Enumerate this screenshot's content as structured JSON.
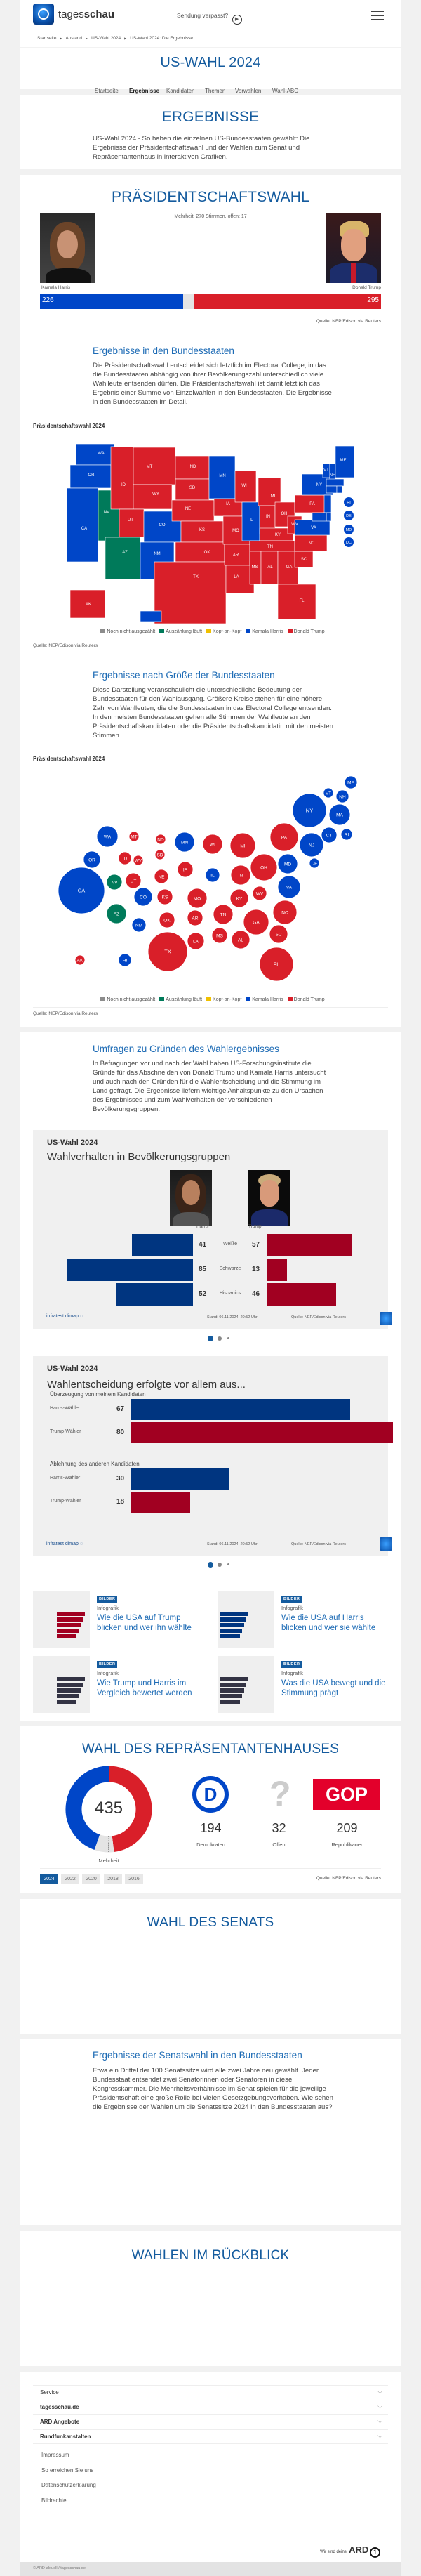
{
  "header": {
    "brand_light": "tages",
    "brand_bold": "schau",
    "sendung": "Sendung verpasst?",
    "menu_icon": "hamburger-icon"
  },
  "breadcrumb": [
    "Startseite",
    "Ausland",
    "US-Wahl 2024",
    "US-Wahl 2024: Die Ergebnisse"
  ],
  "page_title": "US-WAHL 2024",
  "nav": [
    {
      "label": "Startseite"
    },
    {
      "label": "Ergebnisse",
      "active": true
    },
    {
      "label": "Kandidaten"
    },
    {
      "label": "Themen"
    },
    {
      "label": "Vorwahlen"
    },
    {
      "label": "Wahl-ABC"
    }
  ],
  "intro": {
    "title": "ERGEBNISSE",
    "text": "US-Wahl 2024 - So haben die einzelnen US-Bundesstaaten gewählt: Die Ergebnisse der Präsidentschaftswahl und der Wahlen zum Senat und Repräsentantenhaus in interaktiven Grafiken."
  },
  "president": {
    "title": "PRÄSIDENTSCHAFTSWAHL",
    "majority": "Mehrheit: 270 Stimmen, offen: 17",
    "harris": {
      "name": "Kamala Harris",
      "votes": 226
    },
    "trump": {
      "name": "Donald Trump",
      "votes": 295
    },
    "open": 17,
    "total": 538,
    "majority_line": 270,
    "source": "Quelle: NEP/Edison via Reuters",
    "states_heading": "Ergebnisse in den Bundesstaaten",
    "states_text": "Die Präsidentschaftswahl entscheidet sich letztlich im Electoral College, in das die Bundesstaaten abhängig von ihrer Bevölkerungszahl unterschiedlich viele Wahlleute entsenden dürfen. Die Präsidentschaftswahl ist damit letztlich das Ergebnis einer Summe von Einzelwahlen in den Bundesstaaten. Die Ergebnisse in den Bundesstaaten im Detail.",
    "map_label": "Präsidentschaftswahl 2024",
    "size_heading": "Ergebnisse nach Größe der Bundesstaaten",
    "size_text": "Diese Darstellung veranschaulicht die unterschiedliche Bedeutung der Bundesstaaten für den Wahlausgang. Größere Kreise stehen für eine höhere Zahl von Wahlleuten, die die Bundesstaaten in das Electoral College entsenden. In den meisten Bundesstaaten gehen alle Stimmen der Wahlleute an den Präsidentschaftskandidaten oder die Präsidentschaftskandidatin mit den meisten Stimmen.",
    "bubble_label": "Präsidentschaftswahl 2024"
  },
  "colors": {
    "harris": "#0046c8",
    "trump": "#d91f29",
    "counting": "#007a5a",
    "notcounted": "#8c8c8c",
    "tossup": "#f0c000",
    "title": "#145b9e",
    "survey_blue": "#003580",
    "survey_red": "#a10021"
  },
  "legend": [
    {
      "label": "Noch nicht ausgezählt",
      "key": "notcounted"
    },
    {
      "label": "Auszählung läuft",
      "key": "counting"
    },
    {
      "label": "Kopf-an-Kopf",
      "key": "tossup"
    },
    {
      "label": "Kamala Harris",
      "key": "harris"
    },
    {
      "label": "Donald Trump",
      "key": "trump"
    }
  ],
  "states": {
    "harris": [
      "WA",
      "OR",
      "CA",
      "CO",
      "NM",
      "MN",
      "IL",
      "VA",
      "MD",
      "DE",
      "NJ",
      "NY",
      "CT",
      "RI",
      "MA",
      "VT",
      "NH",
      "ME",
      "HI",
      "DC"
    ],
    "counting": [
      "NV",
      "AZ"
    ],
    "trump": [
      "ID",
      "MT",
      "WY",
      "UT",
      "ND",
      "SD",
      "NE",
      "KS",
      "OK",
      "TX",
      "IA",
      "MO",
      "AR",
      "LA",
      "WI",
      "MI",
      "IN",
      "OH",
      "KY",
      "TN",
      "MS",
      "AL",
      "GA",
      "FL",
      "SC",
      "NC",
      "WV",
      "PA",
      "AK"
    ]
  },
  "surveys": {
    "heading": "Umfragen zu Gründen des Wahlergebnisses",
    "text": "In Befragungen vor und nach der Wahl haben US-Forschungsinstitute die Gründe für das Abschneiden von Donald Trump und Kamala Harris untersucht und auch nach den Gründen für die Wahlentscheidung und die Stimmung im Land gefragt. Die Ergebnisse liefern wichtige Anhaltspunkte zu den Ursachen des Ergebnisses und zum Wahlverhalten der verschiedenen Bevölkerungsgruppen.",
    "chart1": {
      "kicker": "US-Wahl 2024",
      "title": "Wahlverhalten in Bevölkerungsgruppen",
      "harris": "Harris",
      "trump": "Trump",
      "rows": [
        {
          "label": "Weiße",
          "harris": 41,
          "trump": 57
        },
        {
          "label": "Schwarze",
          "harris": 85,
          "trump": 13
        },
        {
          "label": "Hispanics",
          "harris": 52,
          "trump": 46
        }
      ],
      "brand": "infratest dimap",
      "stand": "Stand:  06.11.2024, 20:52 Uhr",
      "source": "Quelle: NEP/Edison via Reuters"
    },
    "chart2": {
      "kicker": "US-Wahl 2024",
      "title": "Wahlentscheidung erfolgte vor allem aus...",
      "groups": [
        {
          "label": "Überzeugung von meinem Kandidaten",
          "rows": [
            {
              "label": "Harris-Wähler",
              "value": 67,
              "party": "harris"
            },
            {
              "label": "Trump-Wähler",
              "value": 80,
              "party": "trump"
            }
          ]
        },
        {
          "label": "Ablehnung des anderen Kandidaten",
          "rows": [
            {
              "label": "Harris-Wähler",
              "value": 30,
              "party": "harris"
            },
            {
              "label": "Trump-Wähler",
              "value": 18,
              "party": "trump"
            }
          ]
        }
      ],
      "brand": "infratest dimap",
      "stand": "Stand:  06.11.2024, 20:52 Uhr",
      "source": "Quelle: NEP/Edison via Reuters"
    },
    "slides": 3,
    "active_slide": 1,
    "tiles": [
      {
        "badge": "BILDER",
        "kicker": "Infografik",
        "title": "Wie die USA auf Trump blicken und wer ihn wählte"
      },
      {
        "badge": "BILDER",
        "kicker": "Infografik",
        "title": "Wie die USA auf Harris blicken und wer sie wählte"
      },
      {
        "badge": "BILDER",
        "kicker": "Infografik",
        "title": "Wie Trump und Harris im Vergleich bewertet werden"
      },
      {
        "badge": "BILDER",
        "kicker": "Infografik",
        "title": "Was die USA bewegt und die Stimmung prägt"
      }
    ]
  },
  "house": {
    "title": "WAHL DES REPRÄSENTANTENHAUSES",
    "total": "435",
    "majority_label": "Mehrheit",
    "dem": {
      "value": 194,
      "label": "Demokraten"
    },
    "open": {
      "value": 32,
      "label": "Offen"
    },
    "rep": {
      "value": 209,
      "label": "Republikaner"
    },
    "gop_logo": "GOP",
    "dem_logo": "D",
    "years": [
      "2024",
      "2022",
      "2020",
      "2018",
      "2016"
    ],
    "active_year": "2024",
    "source": "Quelle: NEP/Edison via Reuters"
  },
  "senate": {
    "title": "WAHL DES SENATS",
    "heading": "Ergebnisse der Senatswahl in den Bundesstaaten",
    "text": "Etwa ein Drittel der 100 Senatssitze wird alle zwei Jahre neu gewählt. Jeder Bundesstaat entsendet zwei Senatorinnen oder Senatoren in diese Kongresskammer. Die Mehrheitsverhältnisse im Senat spielen für die jeweilige Präsidentschaft eine große Rolle bei vielen Gesetzgebungsvorhaben. Wie sehen die Ergebnisse der Wahlen um die Senatssitze 2024 in den Bundesstaaten aus?"
  },
  "review": {
    "title": "WAHLEN IM RÜCKBLICK"
  },
  "footer": {
    "sections": [
      "Service",
      "tagesschau.de",
      "ARD Angebote",
      "Rundfunkanstalten"
    ],
    "links": [
      "Impressum",
      "So erreichen Sie uns",
      "Datenschutzerklärung",
      "Bildrechte"
    ],
    "slogan": "Wir sind deins.",
    "ard": "ARD",
    "copyright": "© ARD-aktuell / tagesschau.de"
  }
}
